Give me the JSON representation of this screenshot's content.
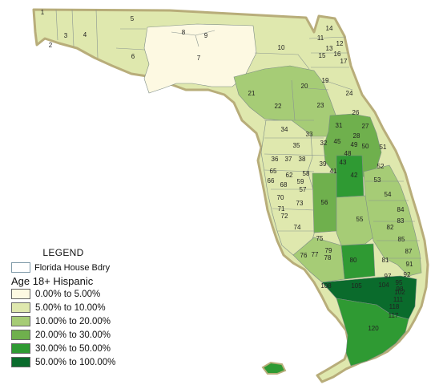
{
  "legend": {
    "title": "LEGEND",
    "boundary_label": "Florida House Bdry",
    "subtitle": "Age 18+ Hispanic",
    "classes": [
      {
        "label": "0.00% to 5.00%",
        "color": "#fdf9e2"
      },
      {
        "label": "5.00% to 10.00%",
        "color": "#dfe8ae"
      },
      {
        "label": "10.00% to 20.00%",
        "color": "#a6cc76"
      },
      {
        "label": "20.00% to 30.00%",
        "color": "#6fb04d"
      },
      {
        "label": "30.00% to 50.00%",
        "color": "#2f9a33"
      },
      {
        "label": "50.00% to 100.00%",
        "color": "#0a6b2c"
      }
    ]
  },
  "map": {
    "land_border_color": "#b8ad7a",
    "district_border_color": "#7d8c86",
    "district_labels": [
      {
        "n": "1",
        "cls": 1
      },
      {
        "n": "2",
        "cls": 1
      },
      {
        "n": "3",
        "cls": 1
      },
      {
        "n": "4",
        "cls": 1
      },
      {
        "n": "5",
        "cls": 1
      },
      {
        "n": "6",
        "cls": 1
      },
      {
        "n": "7",
        "cls": 0
      },
      {
        "n": "8",
        "cls": 0
      },
      {
        "n": "9",
        "cls": 1
      },
      {
        "n": "10",
        "cls": 1
      },
      {
        "n": "11",
        "cls": 1
      },
      {
        "n": "12",
        "cls": 1
      },
      {
        "n": "13",
        "cls": 1
      },
      {
        "n": "14",
        "cls": 1
      },
      {
        "n": "15",
        "cls": 1
      },
      {
        "n": "16",
        "cls": 1
      },
      {
        "n": "17",
        "cls": 1
      },
      {
        "n": "19",
        "cls": 1
      },
      {
        "n": "20",
        "cls": 2
      },
      {
        "n": "21",
        "cls": 2
      },
      {
        "n": "22",
        "cls": 2
      },
      {
        "n": "23",
        "cls": 2
      },
      {
        "n": "24",
        "cls": 1
      },
      {
        "n": "26",
        "cls": 1
      },
      {
        "n": "27",
        "cls": 3
      },
      {
        "n": "28",
        "cls": 2
      },
      {
        "n": "31",
        "cls": 2
      },
      {
        "n": "32",
        "cls": 2
      },
      {
        "n": "33",
        "cls": 1
      },
      {
        "n": "34",
        "cls": 1
      },
      {
        "n": "35",
        "cls": 1
      },
      {
        "n": "36",
        "cls": 1
      },
      {
        "n": "37",
        "cls": 1
      },
      {
        "n": "38",
        "cls": 1
      },
      {
        "n": "39",
        "cls": 2
      },
      {
        "n": "41",
        "cls": 2
      },
      {
        "n": "42",
        "cls": 4
      },
      {
        "n": "43",
        "cls": 3
      },
      {
        "n": "45",
        "cls": 3
      },
      {
        "n": "48",
        "cls": 4
      },
      {
        "n": "49",
        "cls": 3
      },
      {
        "n": "50",
        "cls": 3
      },
      {
        "n": "51",
        "cls": 1
      },
      {
        "n": "52",
        "cls": 1
      },
      {
        "n": "53",
        "cls": 2
      },
      {
        "n": "54",
        "cls": 2
      },
      {
        "n": "55",
        "cls": 2
      },
      {
        "n": "56",
        "cls": 3
      },
      {
        "n": "57",
        "cls": 2
      },
      {
        "n": "58",
        "cls": 2
      },
      {
        "n": "59",
        "cls": 3
      },
      {
        "n": "62",
        "cls": 3
      },
      {
        "n": "65",
        "cls": 1
      },
      {
        "n": "66",
        "cls": 1
      },
      {
        "n": "68",
        "cls": 2
      },
      {
        "n": "70",
        "cls": 2
      },
      {
        "n": "71",
        "cls": 1
      },
      {
        "n": "72",
        "cls": 1
      },
      {
        "n": "73",
        "cls": 1
      },
      {
        "n": "74",
        "cls": 1
      },
      {
        "n": "75",
        "cls": 1
      },
      {
        "n": "76",
        "cls": 2
      },
      {
        "n": "77",
        "cls": 2
      },
      {
        "n": "78",
        "cls": 2
      },
      {
        "n": "79",
        "cls": 3
      },
      {
        "n": "80",
        "cls": 4
      },
      {
        "n": "81",
        "cls": 2
      },
      {
        "n": "82",
        "cls": 2
      },
      {
        "n": "83",
        "cls": 2
      },
      {
        "n": "84",
        "cls": 2
      },
      {
        "n": "85",
        "cls": 2
      },
      {
        "n": "87",
        "cls": 3
      },
      {
        "n": "91",
        "cls": 2
      },
      {
        "n": "92",
        "cls": 3
      },
      {
        "n": "95",
        "cls": 4
      },
      {
        "n": "97",
        "cls": 4
      },
      {
        "n": "98",
        "cls": 4
      },
      {
        "n": "102",
        "cls": 4
      },
      {
        "n": "104",
        "cls": 5
      },
      {
        "n": "105",
        "cls": 5
      },
      {
        "n": "108",
        "cls": 3
      },
      {
        "n": "111",
        "cls": 5
      },
      {
        "n": "117",
        "cls": 4
      },
      {
        "n": "118",
        "cls": 5
      },
      {
        "n": "120",
        "cls": 4
      }
    ]
  }
}
